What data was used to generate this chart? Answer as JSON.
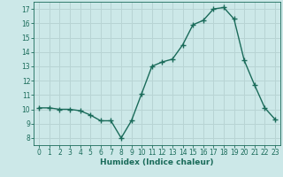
{
  "x": [
    0,
    1,
    2,
    3,
    4,
    5,
    6,
    7,
    8,
    9,
    10,
    11,
    12,
    13,
    14,
    15,
    16,
    17,
    18,
    19,
    20,
    21,
    22,
    23
  ],
  "y": [
    10.1,
    10.1,
    10.0,
    10.0,
    9.9,
    9.6,
    9.2,
    9.2,
    8.0,
    9.2,
    11.1,
    13.0,
    13.3,
    13.5,
    14.5,
    15.9,
    16.2,
    17.0,
    17.1,
    16.3,
    13.4,
    11.7,
    10.1,
    9.3
  ],
  "xlim": [
    -0.5,
    23.5
  ],
  "ylim": [
    7.5,
    17.5
  ],
  "yticks": [
    8,
    9,
    10,
    11,
    12,
    13,
    14,
    15,
    16,
    17
  ],
  "xticks": [
    0,
    1,
    2,
    3,
    4,
    5,
    6,
    7,
    8,
    9,
    10,
    11,
    12,
    13,
    14,
    15,
    16,
    17,
    18,
    19,
    20,
    21,
    22,
    23
  ],
  "xlabel": "Humidex (Indice chaleur)",
  "line_color": "#1a6b5a",
  "marker_color": "#1a6b5a",
  "bg_color": "#cce8e8",
  "grid_color": "#b8d4d4",
  "tick_color": "#1a6b5a",
  "label_color": "#1a6b5a"
}
